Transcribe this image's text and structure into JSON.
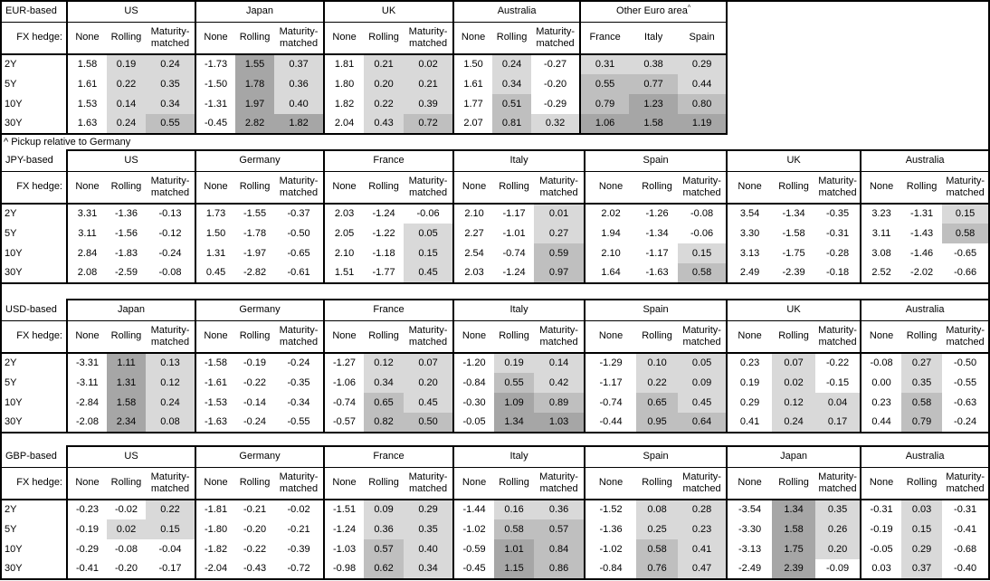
{
  "footnote": "^ Pickup relative to Germany",
  "heatmap": {
    "thresholds": [
      0,
      0.5,
      1
    ],
    "colors": {
      "below_zero": "#ffffff",
      "zero_to_half": "#d9d9d9",
      "half_to_one": "#bfbfbf",
      "one_plus": "#a6a6a6"
    },
    "unshaded_column": "None"
  },
  "chart_data": [
    {
      "type": "table",
      "title": "EUR-based",
      "fx_hedge_label": "FX hedge:",
      "tenors": [
        "2Y",
        "5Y",
        "10Y",
        "30Y"
      ],
      "groups": [
        {
          "name": "US",
          "subcols": [
            "None",
            "Rolling",
            "Maturity-matched"
          ],
          "values": [
            [
              "1.58",
              "0.19",
              "0.24"
            ],
            [
              "1.61",
              "0.22",
              "0.35"
            ],
            [
              "1.53",
              "0.14",
              "0.34"
            ],
            [
              "1.63",
              "0.24",
              "0.55"
            ]
          ]
        },
        {
          "name": "Japan",
          "subcols": [
            "None",
            "Rolling",
            "Maturity-matched"
          ],
          "values": [
            [
              "-1.73",
              "1.55",
              "0.37"
            ],
            [
              "-1.50",
              "1.78",
              "0.36"
            ],
            [
              "-1.31",
              "1.97",
              "0.40"
            ],
            [
              "-0.45",
              "2.82",
              "1.82"
            ]
          ]
        },
        {
          "name": "UK",
          "subcols": [
            "None",
            "Rolling",
            "Maturity-matched"
          ],
          "values": [
            [
              "1.81",
              "0.21",
              "0.02"
            ],
            [
              "1.80",
              "0.20",
              "0.21"
            ],
            [
              "1.82",
              "0.22",
              "0.39"
            ],
            [
              "2.04",
              "0.43",
              "0.72"
            ]
          ]
        },
        {
          "name": "Australia",
          "subcols": [
            "None",
            "Rolling",
            "Maturity-matched"
          ],
          "values": [
            [
              "1.50",
              "0.24",
              "-0.27"
            ],
            [
              "1.61",
              "0.34",
              "-0.20"
            ],
            [
              "1.77",
              "0.51",
              "-0.29"
            ],
            [
              "2.07",
              "0.81",
              "0.32"
            ]
          ]
        },
        {
          "name": "Other Euro area",
          "superscript": "^",
          "subcols": [
            "France",
            "Italy",
            "Spain"
          ],
          "values": [
            [
              "0.31",
              "0.38",
              "0.29"
            ],
            [
              "0.55",
              "0.77",
              "0.44"
            ],
            [
              "0.79",
              "1.23",
              "0.80"
            ],
            [
              "1.06",
              "1.58",
              "1.19"
            ]
          ]
        }
      ]
    },
    {
      "type": "table",
      "title": "JPY-based",
      "fx_hedge_label": "FX hedge:",
      "tenors": [
        "2Y",
        "5Y",
        "10Y",
        "30Y"
      ],
      "groups": [
        {
          "name": "US",
          "subcols": [
            "None",
            "Rolling",
            "Maturity-matched"
          ],
          "values": [
            [
              "3.31",
              "-1.36",
              "-0.13"
            ],
            [
              "3.11",
              "-1.56",
              "-0.12"
            ],
            [
              "2.84",
              "-1.83",
              "-0.24"
            ],
            [
              "2.08",
              "-2.59",
              "-0.08"
            ]
          ]
        },
        {
          "name": "Germany",
          "subcols": [
            "None",
            "Rolling",
            "Maturity-matched"
          ],
          "values": [
            [
              "1.73",
              "-1.55",
              "-0.37"
            ],
            [
              "1.50",
              "-1.78",
              "-0.50"
            ],
            [
              "1.31",
              "-1.97",
              "-0.65"
            ],
            [
              "0.45",
              "-2.82",
              "-0.61"
            ]
          ]
        },
        {
          "name": "France",
          "subcols": [
            "None",
            "Rolling",
            "Maturity-matched"
          ],
          "values": [
            [
              "2.03",
              "-1.24",
              "-0.06"
            ],
            [
              "2.05",
              "-1.22",
              "0.05"
            ],
            [
              "2.10",
              "-1.18",
              "0.15"
            ],
            [
              "1.51",
              "-1.77",
              "0.45"
            ]
          ]
        },
        {
          "name": "Italy",
          "subcols": [
            "None",
            "Rolling",
            "Maturity-matched"
          ],
          "values": [
            [
              "2.10",
              "-1.17",
              "0.01"
            ],
            [
              "2.27",
              "-1.01",
              "0.27"
            ],
            [
              "2.54",
              "-0.74",
              "0.59"
            ],
            [
              "2.03",
              "-1.24",
              "0.97"
            ]
          ]
        },
        {
          "name": "Spain",
          "subcols": [
            "None",
            "Rolling",
            "Maturity-matched"
          ],
          "values": [
            [
              "2.02",
              "-1.26",
              "-0.08"
            ],
            [
              "1.94",
              "-1.34",
              "-0.06"
            ],
            [
              "2.10",
              "-1.17",
              "0.15"
            ],
            [
              "1.64",
              "-1.63",
              "0.58"
            ]
          ]
        },
        {
          "name": "UK",
          "subcols": [
            "None",
            "Rolling",
            "Maturity-matched"
          ],
          "values": [
            [
              "3.54",
              "-1.34",
              "-0.35"
            ],
            [
              "3.30",
              "-1.58",
              "-0.31"
            ],
            [
              "3.13",
              "-1.75",
              "-0.28"
            ],
            [
              "2.49",
              "-2.39",
              "-0.18"
            ]
          ]
        },
        {
          "name": "Australia",
          "subcols": [
            "None",
            "Rolling",
            "Maturity-matched"
          ],
          "values": [
            [
              "3.23",
              "-1.31",
              "0.15"
            ],
            [
              "3.11",
              "-1.43",
              "0.58"
            ],
            [
              "3.08",
              "-1.46",
              "-0.65"
            ],
            [
              "2.52",
              "-2.02",
              "-0.66"
            ]
          ]
        }
      ]
    },
    {
      "type": "table",
      "title": "USD-based",
      "fx_hedge_label": "FX hedge:",
      "tenors": [
        "2Y",
        "5Y",
        "10Y",
        "30Y"
      ],
      "groups": [
        {
          "name": "Japan",
          "subcols": [
            "None",
            "Rolling",
            "Maturity-matched"
          ],
          "values": [
            [
              "-3.31",
              "1.11",
              "0.13"
            ],
            [
              "-3.11",
              "1.31",
              "0.12"
            ],
            [
              "-2.84",
              "1.58",
              "0.24"
            ],
            [
              "-2.08",
              "2.34",
              "0.08"
            ]
          ]
        },
        {
          "name": "Germany",
          "subcols": [
            "None",
            "Rolling",
            "Maturity-matched"
          ],
          "values": [
            [
              "-1.58",
              "-0.19",
              "-0.24"
            ],
            [
              "-1.61",
              "-0.22",
              "-0.35"
            ],
            [
              "-1.53",
              "-0.14",
              "-0.34"
            ],
            [
              "-1.63",
              "-0.24",
              "-0.55"
            ]
          ]
        },
        {
          "name": "France",
          "subcols": [
            "None",
            "Rolling",
            "Maturity-matched"
          ],
          "values": [
            [
              "-1.27",
              "0.12",
              "0.07"
            ],
            [
              "-1.06",
              "0.34",
              "0.20"
            ],
            [
              "-0.74",
              "0.65",
              "0.45"
            ],
            [
              "-0.57",
              "0.82",
              "0.50"
            ]
          ]
        },
        {
          "name": "Italy",
          "subcols": [
            "None",
            "Rolling",
            "Maturity-matched"
          ],
          "values": [
            [
              "-1.20",
              "0.19",
              "0.14"
            ],
            [
              "-0.84",
              "0.55",
              "0.42"
            ],
            [
              "-0.30",
              "1.09",
              "0.89"
            ],
            [
              "-0.05",
              "1.34",
              "1.03"
            ]
          ]
        },
        {
          "name": "Spain",
          "subcols": [
            "None",
            "Rolling",
            "Maturity-matched"
          ],
          "values": [
            [
              "-1.29",
              "0.10",
              "0.05"
            ],
            [
              "-1.17",
              "0.22",
              "0.09"
            ],
            [
              "-0.74",
              "0.65",
              "0.45"
            ],
            [
              "-0.44",
              "0.95",
              "0.64"
            ]
          ]
        },
        {
          "name": "UK",
          "subcols": [
            "None",
            "Rolling",
            "Maturity-matched"
          ],
          "values": [
            [
              "0.23",
              "0.07",
              "-0.22"
            ],
            [
              "0.19",
              "0.02",
              "-0.15"
            ],
            [
              "0.29",
              "0.12",
              "0.04"
            ],
            [
              "0.41",
              "0.24",
              "0.17"
            ]
          ]
        },
        {
          "name": "Australia",
          "subcols": [
            "None",
            "Rolling",
            "Maturity-matched"
          ],
          "values": [
            [
              "-0.08",
              "0.27",
              "-0.50"
            ],
            [
              "0.00",
              "0.35",
              "-0.55"
            ],
            [
              "0.23",
              "0.58",
              "-0.63"
            ],
            [
              "0.44",
              "0.79",
              "-0.24"
            ]
          ]
        }
      ]
    },
    {
      "type": "table",
      "title": "GBP-based",
      "fx_hedge_label": "FX hedge:",
      "tenors": [
        "2Y",
        "5Y",
        "10Y",
        "30Y"
      ],
      "groups": [
        {
          "name": "US",
          "subcols": [
            "None",
            "Rolling",
            "Maturity-matched"
          ],
          "values": [
            [
              "-0.23",
              "-0.02",
              "0.22"
            ],
            [
              "-0.19",
              "0.02",
              "0.15"
            ],
            [
              "-0.29",
              "-0.08",
              "-0.04"
            ],
            [
              "-0.41",
              "-0.20",
              "-0.17"
            ]
          ]
        },
        {
          "name": "Germany",
          "subcols": [
            "None",
            "Rolling",
            "Maturity-matched"
          ],
          "values": [
            [
              "-1.81",
              "-0.21",
              "-0.02"
            ],
            [
              "-1.80",
              "-0.20",
              "-0.21"
            ],
            [
              "-1.82",
              "-0.22",
              "-0.39"
            ],
            [
              "-2.04",
              "-0.43",
              "-0.72"
            ]
          ]
        },
        {
          "name": "France",
          "subcols": [
            "None",
            "Rolling",
            "Maturity-matched"
          ],
          "values": [
            [
              "-1.51",
              "0.09",
              "0.29"
            ],
            [
              "-1.24",
              "0.36",
              "0.35"
            ],
            [
              "-1.03",
              "0.57",
              "0.40"
            ],
            [
              "-0.98",
              "0.62",
              "0.34"
            ]
          ]
        },
        {
          "name": "Italy",
          "subcols": [
            "None",
            "Rolling",
            "Maturity-matched"
          ],
          "values": [
            [
              "-1.44",
              "0.16",
              "0.36"
            ],
            [
              "-1.02",
              "0.58",
              "0.57"
            ],
            [
              "-0.59",
              "1.01",
              "0.84"
            ],
            [
              "-0.45",
              "1.15",
              "0.86"
            ]
          ]
        },
        {
          "name": "Spain",
          "subcols": [
            "None",
            "Rolling",
            "Maturity-matched"
          ],
          "values": [
            [
              "-1.52",
              "0.08",
              "0.28"
            ],
            [
              "-1.36",
              "0.25",
              "0.23"
            ],
            [
              "-1.02",
              "0.58",
              "0.41"
            ],
            [
              "-0.84",
              "0.76",
              "0.47"
            ]
          ]
        },
        {
          "name": "Japan",
          "subcols": [
            "None",
            "Rolling",
            "Maturity-matched"
          ],
          "values": [
            [
              "-3.54",
              "1.34",
              "0.35"
            ],
            [
              "-3.30",
              "1.58",
              "0.26"
            ],
            [
              "-3.13",
              "1.75",
              "0.20"
            ],
            [
              "-2.49",
              "2.39",
              "-0.09"
            ]
          ]
        },
        {
          "name": "Australia",
          "subcols": [
            "None",
            "Rolling",
            "Maturity-matched"
          ],
          "values": [
            [
              "-0.31",
              "0.03",
              "-0.31"
            ],
            [
              "-0.19",
              "0.15",
              "-0.41"
            ],
            [
              "-0.05",
              "0.29",
              "-0.68"
            ],
            [
              "0.03",
              "0.37",
              "-0.40"
            ]
          ]
        }
      ]
    }
  ]
}
